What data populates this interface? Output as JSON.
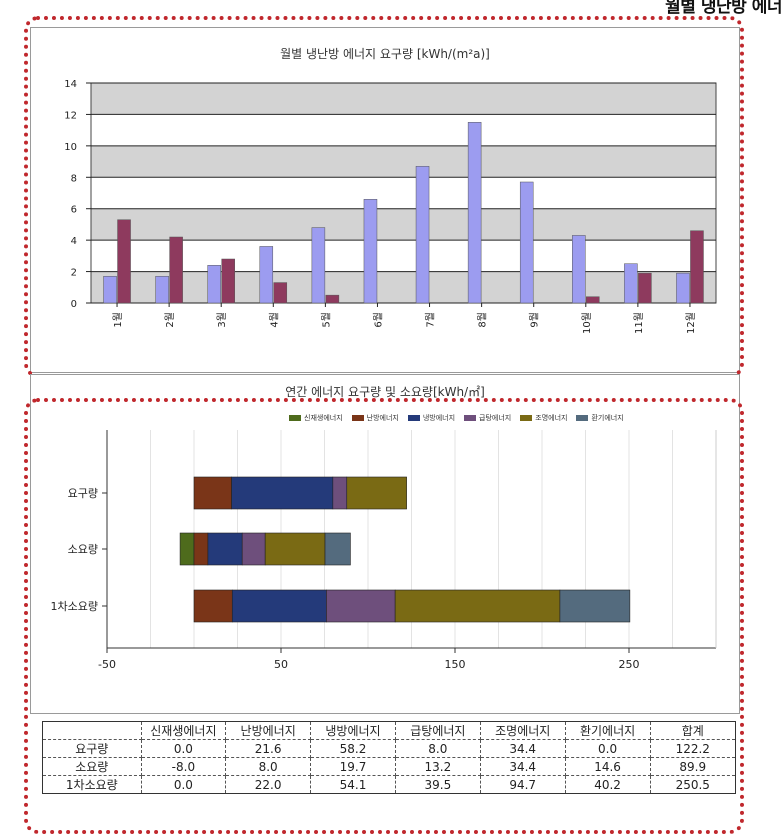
{
  "header": {
    "title": "월별 냉난방 에너"
  },
  "chart_data": [
    {
      "type": "bar",
      "title": "월별 냉난방 에너지 요구량 [kWh/(m²a)]",
      "categories": [
        "1월",
        "2월",
        "3월",
        "4월",
        "5월",
        "6월",
        "7월",
        "8월",
        "9월",
        "10월",
        "11월",
        "12월"
      ],
      "series": [
        {
          "values": [
            1.7,
            1.7,
            2.4,
            3.6,
            4.8,
            6.6,
            8.7,
            11.5,
            7.7,
            4.3,
            2.5,
            1.9
          ],
          "color": "#9c9cf0"
        },
        {
          "values": [
            5.3,
            4.2,
            2.8,
            1.3,
            0.5,
            0,
            0,
            0,
            0,
            0.4,
            1.9,
            4.6
          ],
          "color": "#8e3a5e"
        }
      ],
      "ylim": [
        0,
        14
      ],
      "yticks": [
        0,
        2,
        4,
        6,
        8,
        10,
        12,
        14
      ],
      "grid": true
    },
    {
      "type": "bar",
      "orientation": "horizontal",
      "stacked": true,
      "title": "연간 에너지 요구량 및 소요량[kWh/㎡]",
      "categories": [
        "요구량",
        "소요량",
        "1차소요량"
      ],
      "series": [
        {
          "name": "신재생에너지",
          "color": "#4e6b1c",
          "values": [
            0.0,
            -8.0,
            0.0
          ]
        },
        {
          "name": "난방에너지",
          "color": "#7a3518",
          "values": [
            21.6,
            8.0,
            22.0
          ]
        },
        {
          "name": "냉방에너지",
          "color": "#243a7a",
          "values": [
            58.2,
            19.7,
            54.1
          ]
        },
        {
          "name": "급탕에너지",
          "color": "#6e4f7c",
          "values": [
            8.0,
            13.2,
            39.5
          ]
        },
        {
          "name": "조명에너지",
          "color": "#7a6a14",
          "values": [
            34.4,
            34.4,
            94.7
          ]
        },
        {
          "name": "환기에너지",
          "color": "#546b7e",
          "values": [
            0.0,
            14.6,
            40.2
          ]
        }
      ],
      "xlim": [
        -50,
        300
      ],
      "xticks": [
        -50,
        50,
        150,
        250
      ],
      "legend": "top",
      "grid": true
    }
  ],
  "table": {
    "headers": [
      "",
      "신재생에너지",
      "난방에너지",
      "냉방에너지",
      "급탕에너지",
      "조명에너지",
      "환기에너지",
      "합계"
    ],
    "rows": [
      [
        "요구량",
        "0.0",
        "21.6",
        "58.2",
        "8.0",
        "34.4",
        "0.0",
        "122.2"
      ],
      [
        "소요량",
        "-8.0",
        "8.0",
        "19.7",
        "13.2",
        "34.4",
        "14.6",
        "89.9"
      ],
      [
        "1차소요량",
        "0.0",
        "22.0",
        "54.1",
        "39.5",
        "94.7",
        "40.2",
        "250.5"
      ]
    ]
  }
}
